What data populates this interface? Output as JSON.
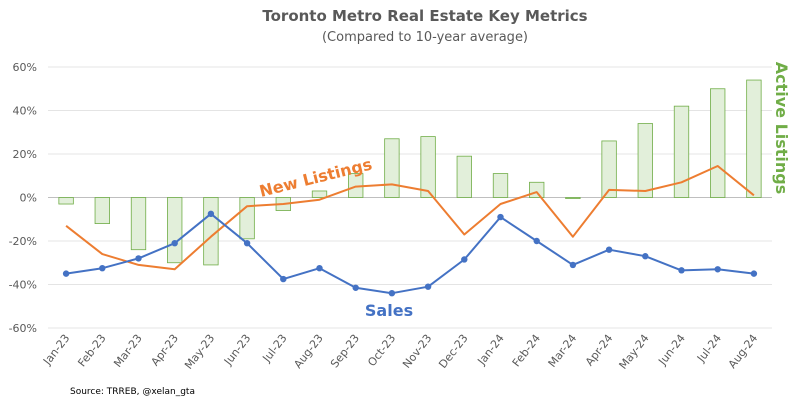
{
  "chart_data": {
    "type": "bar+line",
    "title": "Toronto Metro Real Estate Key Metrics",
    "subtitle": "(Compared to 10-year average)",
    "categories": [
      "Jan-23",
      "Feb-23",
      "Mar-23",
      "Apr-23",
      "May-23",
      "Jun-23",
      "Jul-23",
      "Aug-23",
      "Sep-23",
      "Oct-23",
      "Nov-23",
      "Dec-23",
      "Jan-24",
      "Feb-24",
      "Mar-24",
      "Apr-24",
      "May-24",
      "Jun-24",
      "Jul-24",
      "Aug-24"
    ],
    "y_ticks": [
      "60%",
      "40%",
      "20%",
      "0%",
      "-20%",
      "-40%",
      "-60%"
    ],
    "ylim": [
      -60,
      60
    ],
    "grid": true,
    "series": [
      {
        "name": "Active Listings",
        "kind": "bar",
        "color": "#70AD47",
        "fill": "#E2EFDA",
        "values": [
          -3,
          -12,
          -24,
          -30,
          -31,
          -19,
          -6,
          3,
          11,
          27,
          28,
          19,
          11,
          7,
          -0.5,
          26,
          34,
          42,
          50,
          54
        ]
      },
      {
        "name": "New Listings",
        "kind": "line",
        "color": "#ED7D31",
        "values": [
          -13,
          -26,
          -31,
          -33,
          -18,
          -4,
          -3,
          -1,
          5,
          6,
          3,
          -17,
          -3,
          2.5,
          -18,
          3.5,
          3,
          7,
          14.5,
          1
        ]
      },
      {
        "name": "Sales",
        "kind": "line",
        "color": "#4472C4",
        "values": [
          -35,
          -32.5,
          -28,
          -21,
          -7.5,
          -21,
          -37.5,
          -32.5,
          -41.5,
          -44,
          -41,
          -28.5,
          -9,
          -20,
          -31,
          -24,
          -27,
          -33.5,
          -33,
          -35
        ]
      }
    ],
    "source": "Source: TRREB, @xelan_gta"
  }
}
